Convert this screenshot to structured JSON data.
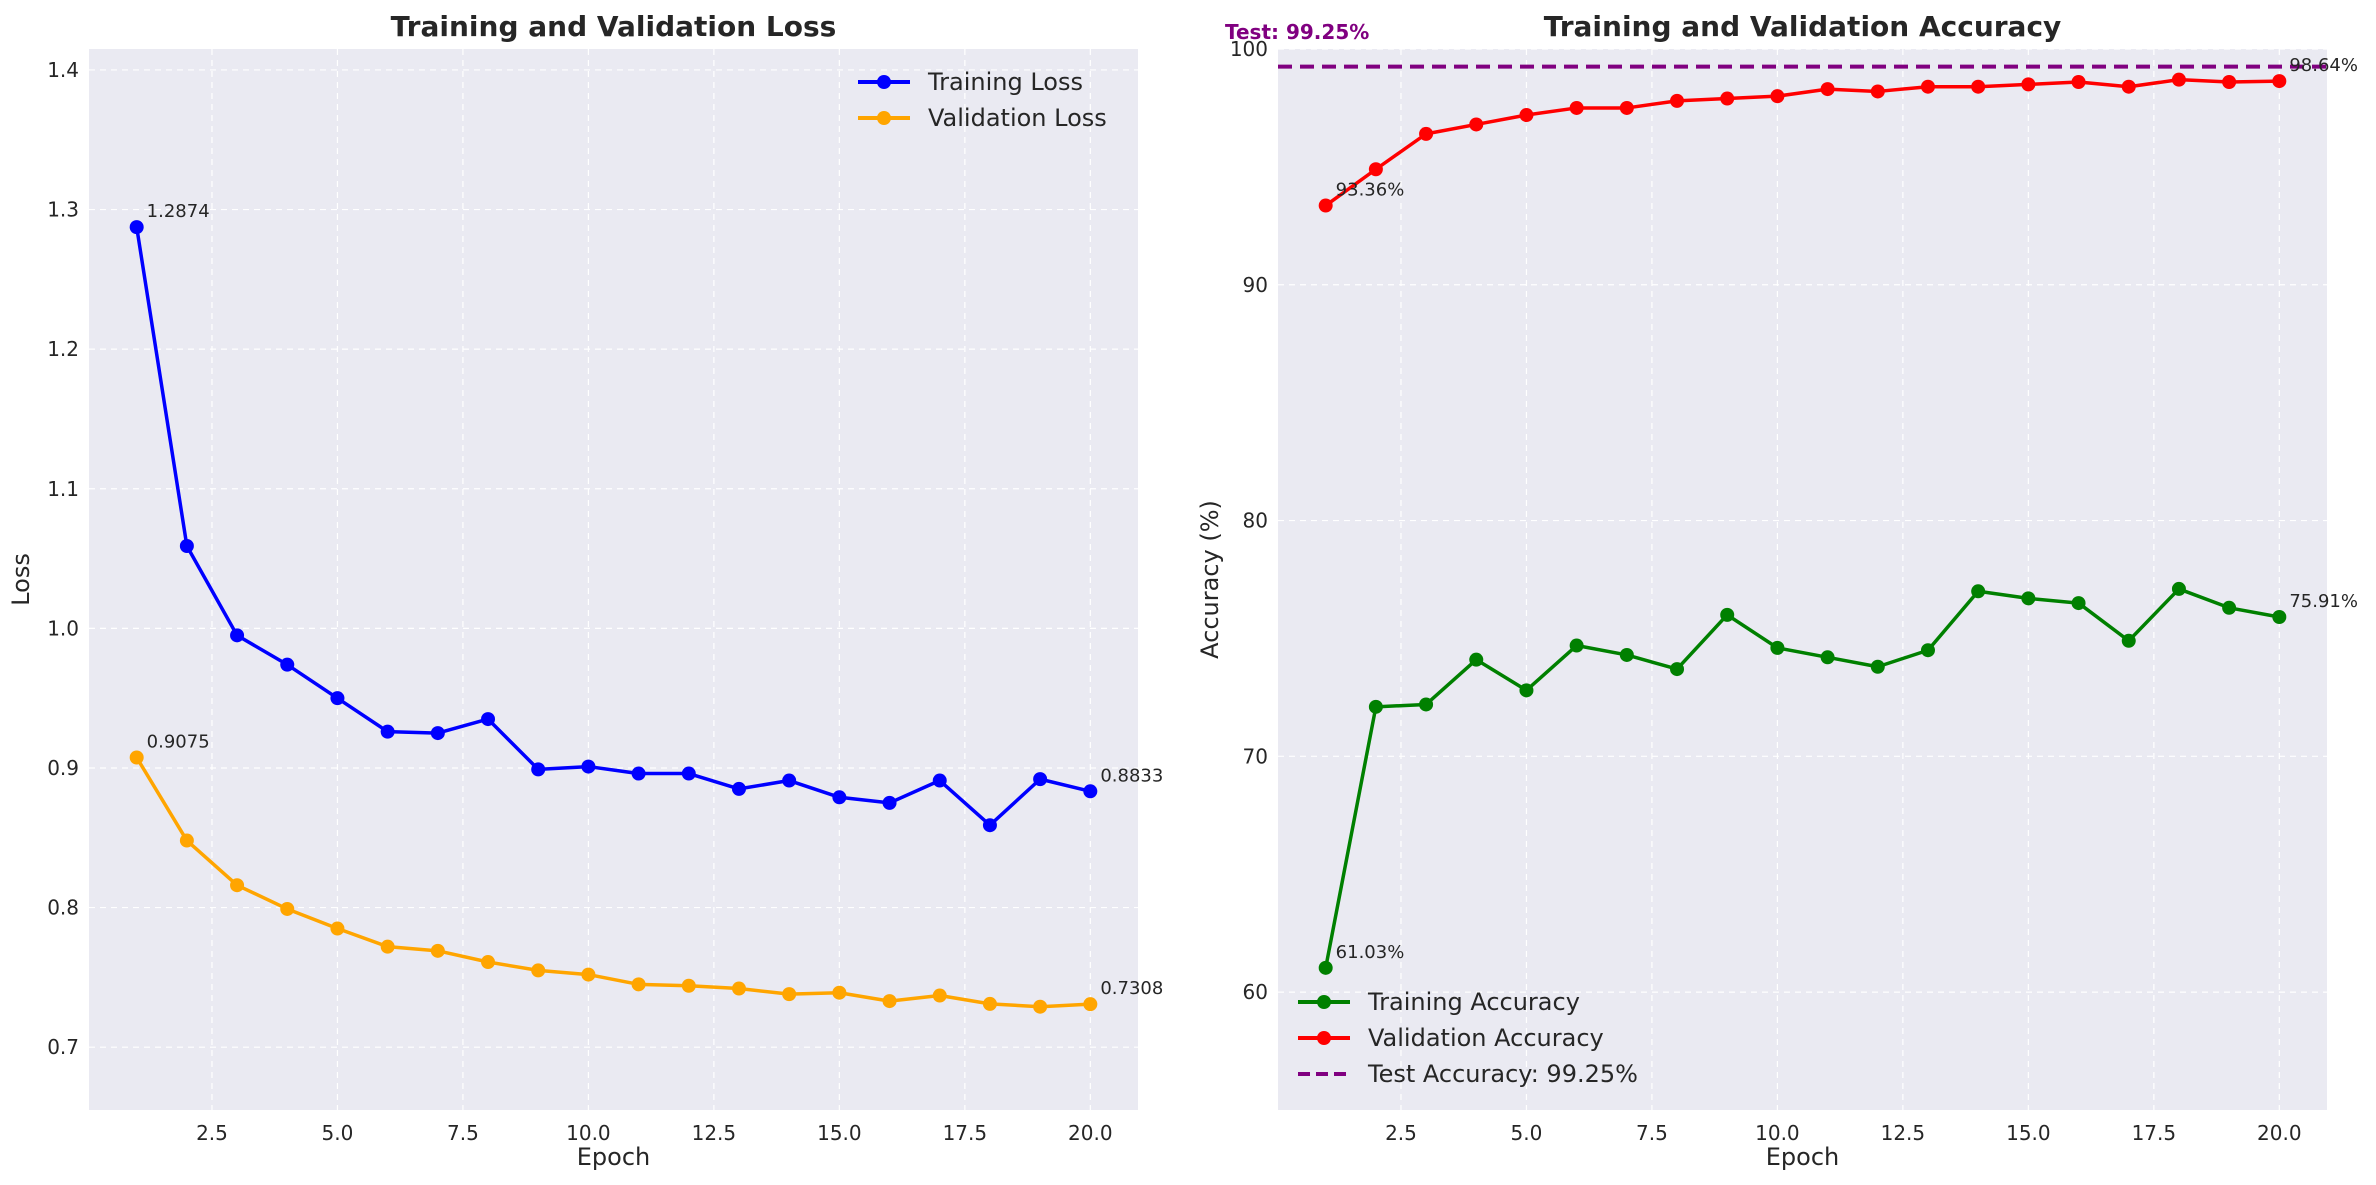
{
  "chart_data": [
    {
      "type": "line",
      "title": "Training and Validation Loss",
      "xlabel": "Epoch",
      "ylabel": "Loss",
      "xlim": [
        0.05,
        20.95
      ],
      "ylim": [
        0.655,
        1.415
      ],
      "xticks": [
        "2.5",
        "5.0",
        "7.5",
        "10.0",
        "12.5",
        "15.0",
        "17.5",
        "20.0"
      ],
      "yticks": [
        "0.7",
        "0.8",
        "0.9",
        "1.0",
        "1.1",
        "1.2",
        "1.3",
        "1.4"
      ],
      "grid": true,
      "legend_position": "top-right",
      "x": [
        1,
        2,
        3,
        4,
        5,
        6,
        7,
        8,
        9,
        10,
        11,
        12,
        13,
        14,
        15,
        16,
        17,
        18,
        19,
        20
      ],
      "series": [
        {
          "name": "Training Loss",
          "color": "#0000ff",
          "values": [
            1.2874,
            1.059,
            0.995,
            0.974,
            0.95,
            0.926,
            0.925,
            0.935,
            0.899,
            0.901,
            0.896,
            0.896,
            0.885,
            0.891,
            0.879,
            0.875,
            0.891,
            0.859,
            0.892,
            0.8833
          ]
        },
        {
          "name": "Validation Loss",
          "color": "#ffa500",
          "values": [
            0.9075,
            0.848,
            0.816,
            0.799,
            0.785,
            0.772,
            0.769,
            0.761,
            0.755,
            0.752,
            0.745,
            0.744,
            0.742,
            0.738,
            0.739,
            0.733,
            0.737,
            0.731,
            0.729,
            0.7308
          ]
        }
      ],
      "annotations": [
        {
          "text": "1.2874",
          "x": 1,
          "y": 1.2874
        },
        {
          "text": "0.9075",
          "x": 1,
          "y": 0.9075
        },
        {
          "text": "0.8833",
          "x": 20,
          "y": 0.8833
        },
        {
          "text": "0.7308",
          "x": 20,
          "y": 0.7308
        }
      ]
    },
    {
      "type": "line",
      "title": "Training and Validation Accuracy",
      "xlabel": "Epoch",
      "ylabel": "Accuracy (%)",
      "xlim": [
        0.05,
        20.95
      ],
      "ylim": [
        55,
        100
      ],
      "xticks": [
        "2.5",
        "5.0",
        "7.5",
        "10.0",
        "12.5",
        "15.0",
        "17.5",
        "20.0"
      ],
      "yticks": [
        "60",
        "70",
        "80",
        "90",
        "100"
      ],
      "grid": true,
      "legend_position": "bottom-left",
      "x": [
        1,
        2,
        3,
        4,
        5,
        6,
        7,
        8,
        9,
        10,
        11,
        12,
        13,
        14,
        15,
        16,
        17,
        18,
        19,
        20
      ],
      "series": [
        {
          "name": "Training Accuracy",
          "color": "#008000",
          "values": [
            61.03,
            72.1,
            72.2,
            74.1,
            72.8,
            74.7,
            74.3,
            73.7,
            76.0,
            74.6,
            74.2,
            73.8,
            74.5,
            77.0,
            76.7,
            76.5,
            74.9,
            77.1,
            76.3,
            75.91
          ]
        },
        {
          "name": "Validation Accuracy",
          "color": "#ff0000",
          "values": [
            93.36,
            94.9,
            96.4,
            96.8,
            97.2,
            97.5,
            97.5,
            97.8,
            97.9,
            98.0,
            98.3,
            98.2,
            98.4,
            98.4,
            98.5,
            98.6,
            98.4,
            98.7,
            98.6,
            98.64
          ]
        }
      ],
      "reference_line": {
        "name": "Test Accuracy: 99.25%",
        "value": 99.25,
        "color": "#800080",
        "label": "Test: 99.25%"
      },
      "annotations": [
        {
          "text": "61.03%",
          "x": 1,
          "y": 61.03
        },
        {
          "text": "93.36%",
          "x": 1,
          "y": 93.36
        },
        {
          "text": "75.91%",
          "x": 20,
          "y": 75.91
        },
        {
          "text": "98.64%",
          "x": 20,
          "y": 98.64
        }
      ]
    }
  ]
}
